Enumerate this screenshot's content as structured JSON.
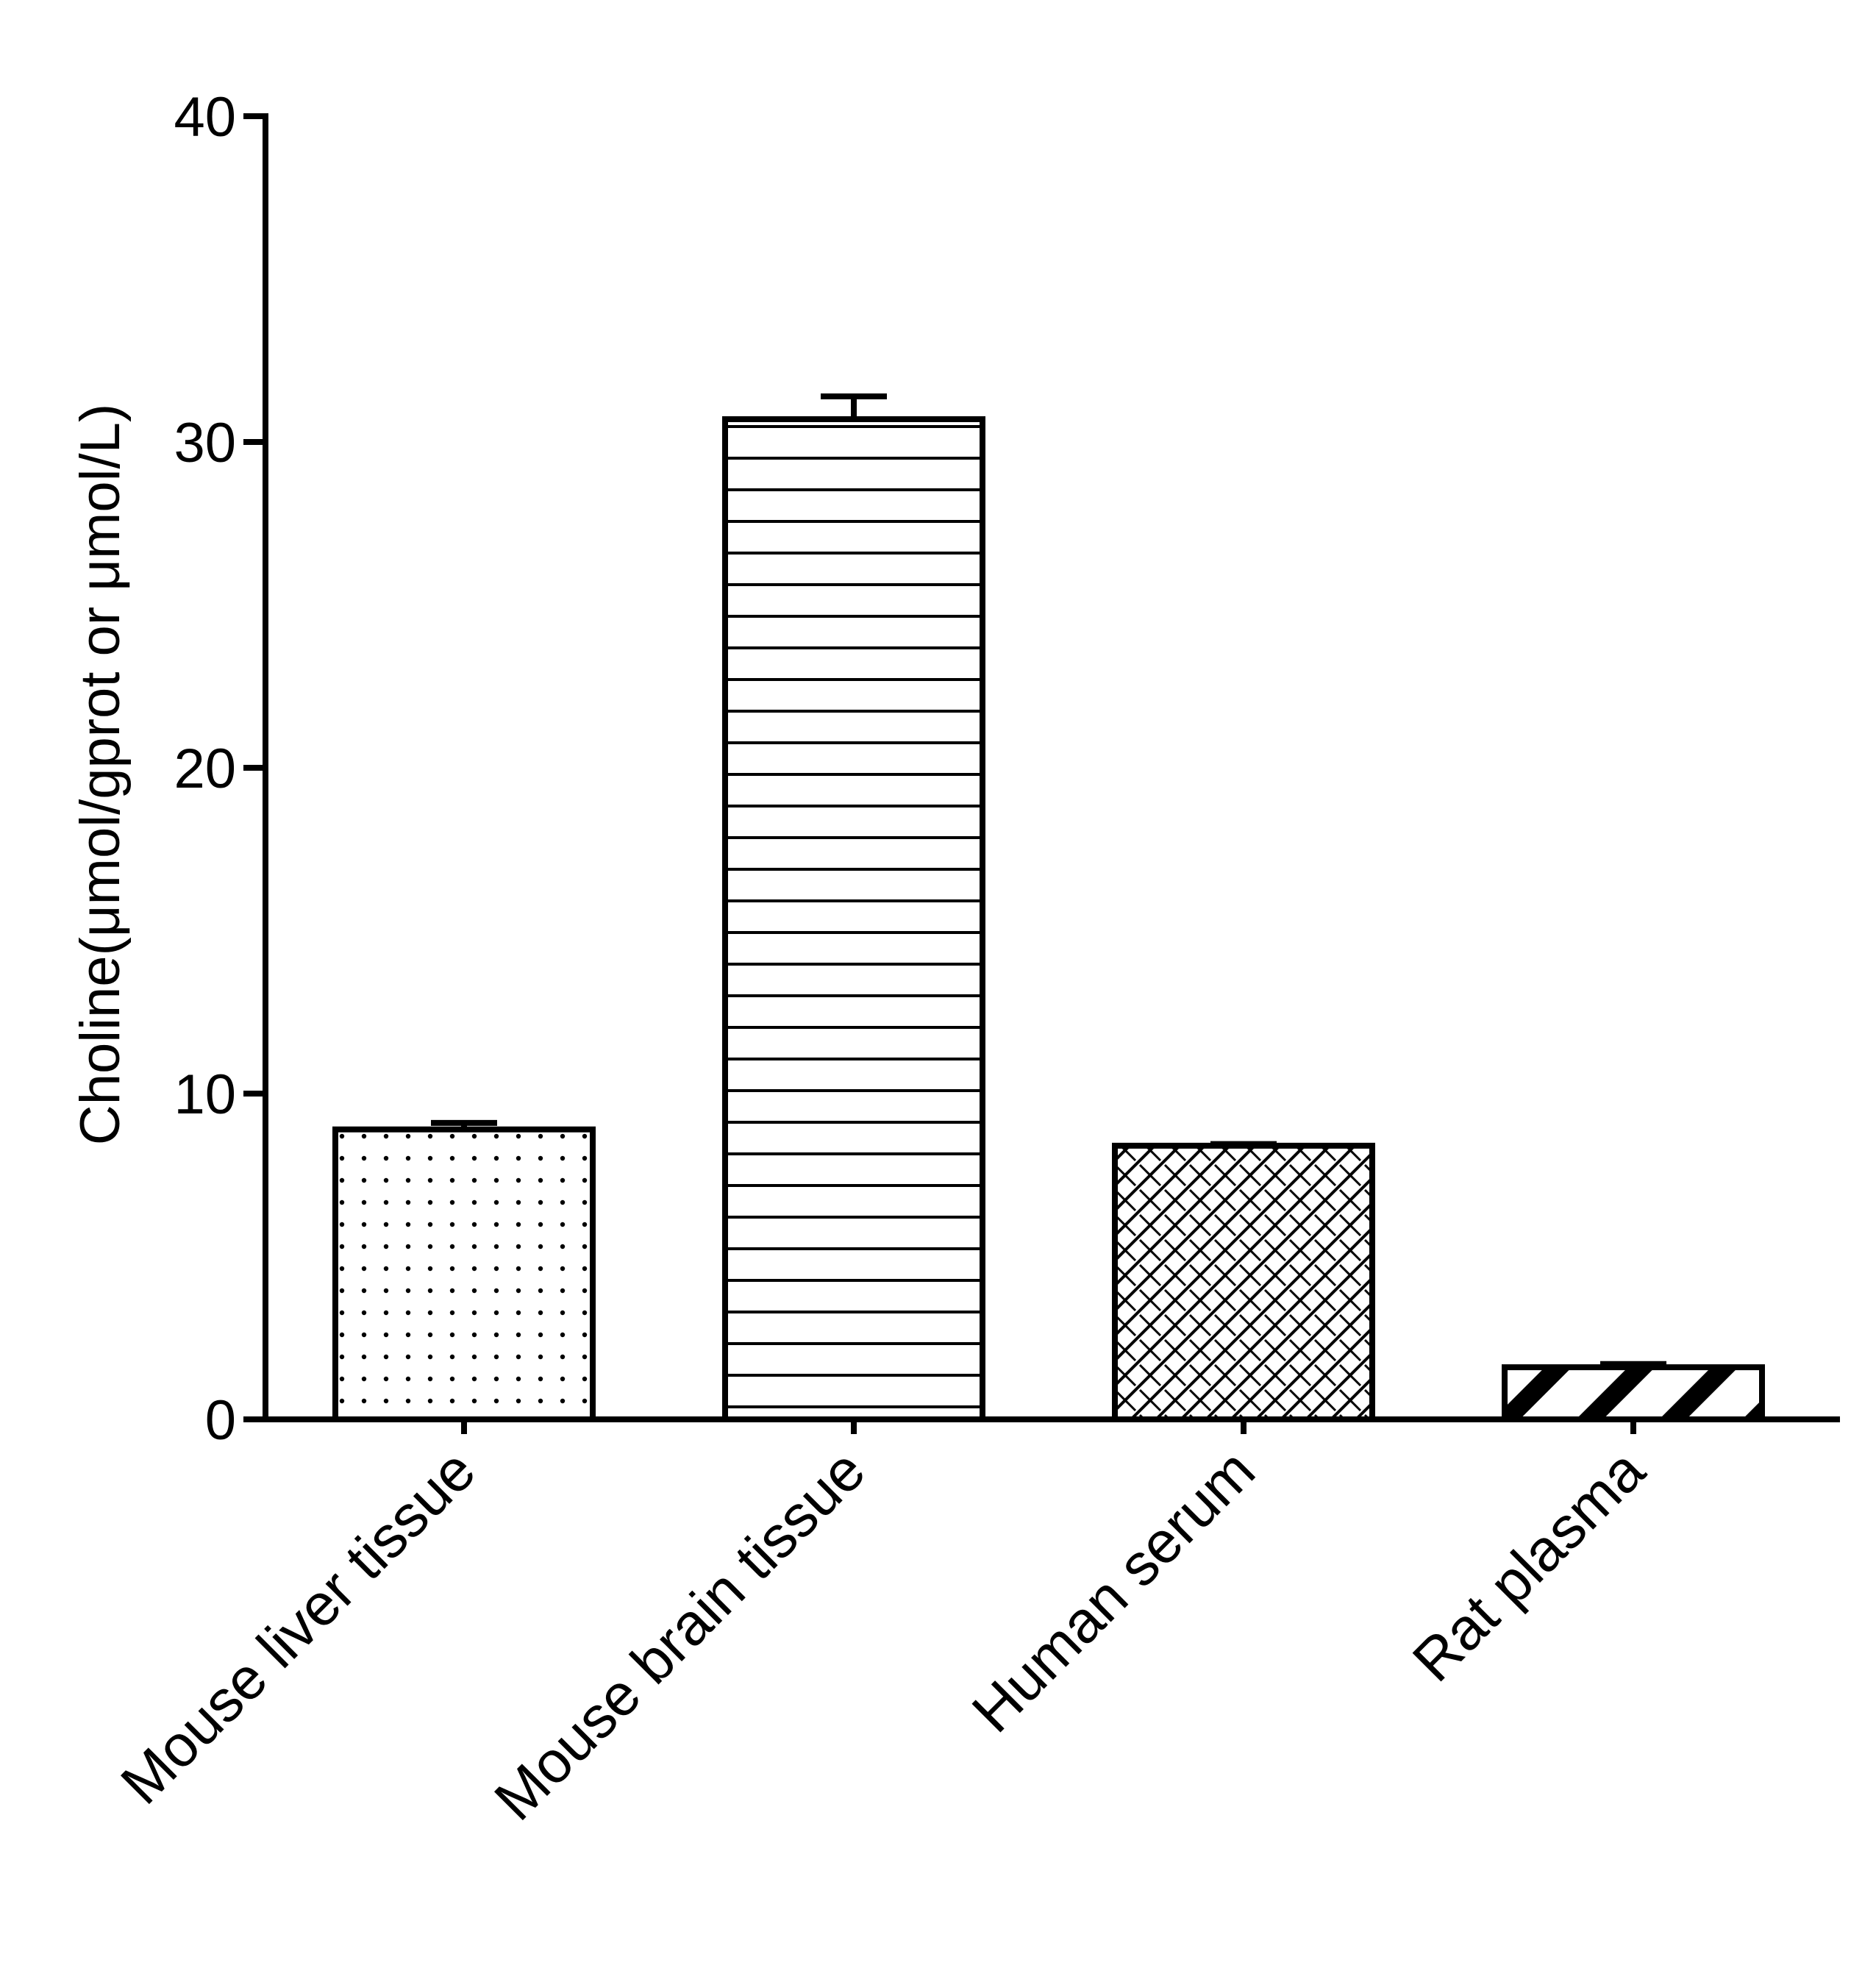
{
  "chart_data": {
    "type": "bar",
    "title": "",
    "xlabel": "",
    "ylabel": "Choline(μmol/gprot or μmol/L)",
    "ylim": [
      0,
      40
    ],
    "yticks": [
      0,
      10,
      20,
      30,
      40
    ],
    "grid": false,
    "legend": "none",
    "categories": [
      "Mouse liver tissue",
      "Mouse brain tissue",
      "Human serum",
      "Rat plasma"
    ],
    "values": [
      8.9,
      30.7,
      8.4,
      1.6
    ],
    "errors": [
      0.2,
      0.7,
      0.05,
      0.1
    ],
    "patterns": [
      "dots",
      "horizontal-lines",
      "crosshatch",
      "diagonal-stripes"
    ],
    "colors": {
      "bar_fill": "#ffffff",
      "stroke": "#000000"
    }
  }
}
